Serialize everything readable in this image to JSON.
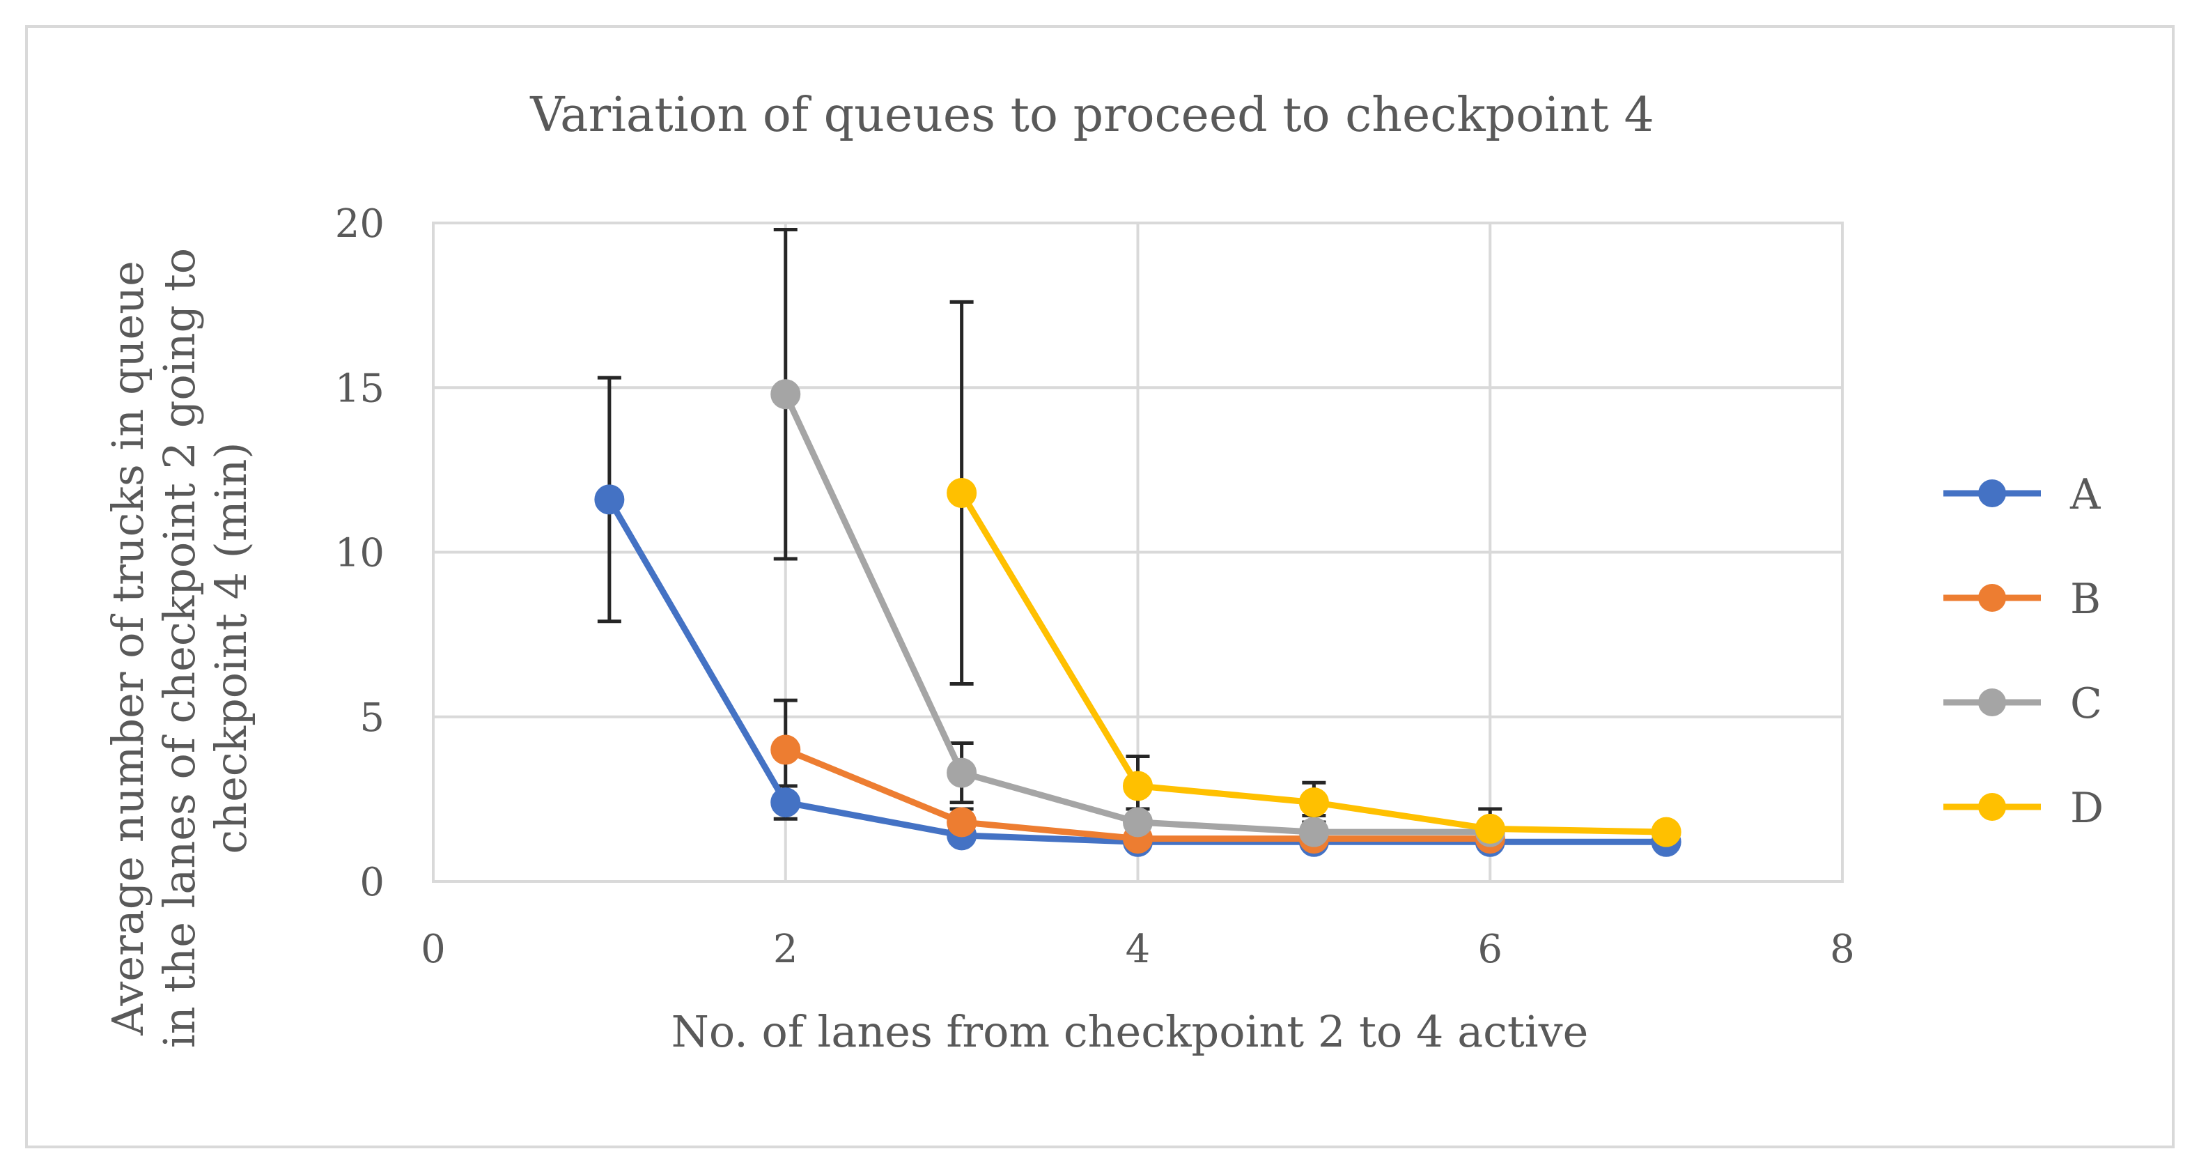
{
  "chart_data": {
    "type": "line",
    "title": "Variation of queues to proceed to checkpoint 4",
    "xlabel": "No. of lanes from checkpoint 2 to 4 active",
    "ylabel_lines": [
      "Average number of trucks in queue",
      "in the lanes of checkpoint 2 going to",
      "checkpoint 4 (min)"
    ],
    "xlim": [
      0,
      8
    ],
    "ylim": [
      0,
      20
    ],
    "xticks": [
      0,
      2,
      4,
      6,
      8
    ],
    "yticks": [
      0,
      5,
      10,
      15,
      20
    ],
    "grid": true,
    "legend_position": "right",
    "series": [
      {
        "name": "A",
        "color": "#4472C4",
        "points": [
          {
            "x": 1,
            "y": 11.6,
            "err": 3.7
          },
          {
            "x": 2,
            "y": 2.4,
            "err": 0.5
          },
          {
            "x": 3,
            "y": 1.4,
            "err": 0.2
          },
          {
            "x": 4,
            "y": 1.2,
            "err": 0.1
          },
          {
            "x": 5,
            "y": 1.2,
            "err": 0.1
          },
          {
            "x": 6,
            "y": 1.2,
            "err": 0.1
          },
          {
            "x": 7,
            "y": 1.2,
            "err": 0.1
          }
        ]
      },
      {
        "name": "B",
        "color": "#ED7D31",
        "points": [
          {
            "x": 2,
            "y": 4.0,
            "err": 1.5
          },
          {
            "x": 3,
            "y": 1.8,
            "err": 0.4
          },
          {
            "x": 4,
            "y": 1.3,
            "err": 0.2
          },
          {
            "x": 5,
            "y": 1.3,
            "err": 0.2
          },
          {
            "x": 6,
            "y": 1.3,
            "err": 0.2
          }
        ]
      },
      {
        "name": "C",
        "color": "#A5A5A5",
        "points": [
          {
            "x": 2,
            "y": 14.8,
            "err": 5.0
          },
          {
            "x": 3,
            "y": 3.3,
            "err": 0.9
          },
          {
            "x": 4,
            "y": 1.8,
            "err": 0.4
          },
          {
            "x": 5,
            "y": 1.5,
            "err": 0.5
          },
          {
            "x": 6,
            "y": 1.5,
            "err": 0.3
          }
        ]
      },
      {
        "name": "D",
        "color": "#FFC000",
        "points": [
          {
            "x": 3,
            "y": 11.8,
            "err": 5.8
          },
          {
            "x": 4,
            "y": 2.9,
            "err": 0.9
          },
          {
            "x": 5,
            "y": 2.4,
            "err": 0.6
          },
          {
            "x": 6,
            "y": 1.6,
            "err": 0.6
          },
          {
            "x": 7,
            "y": 1.5,
            "err": 0.2
          }
        ]
      }
    ]
  }
}
